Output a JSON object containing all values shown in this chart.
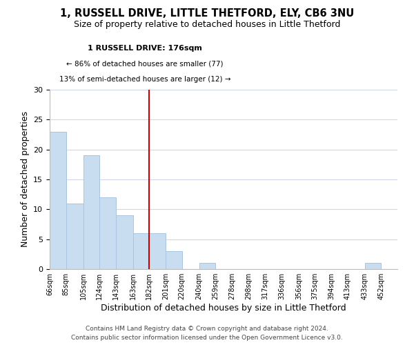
{
  "title": "1, RUSSELL DRIVE, LITTLE THETFORD, ELY, CB6 3NU",
  "subtitle": "Size of property relative to detached houses in Little Thetford",
  "xlabel": "Distribution of detached houses by size in Little Thetford",
  "ylabel": "Number of detached properties",
  "bar_values": [
    23,
    11,
    19,
    12,
    9,
    6,
    6,
    3,
    0,
    1,
    0,
    0,
    0,
    0,
    0,
    0,
    0,
    0,
    0,
    1,
    0
  ],
  "bin_edges": [
    66,
    85,
    105,
    124,
    143,
    163,
    182,
    201,
    220,
    240,
    259,
    278,
    298,
    317,
    336,
    356,
    375,
    394,
    413,
    433,
    452,
    471
  ],
  "tick_labels": [
    "66sqm",
    "85sqm",
    "105sqm",
    "124sqm",
    "143sqm",
    "163sqm",
    "182sqm",
    "201sqm",
    "220sqm",
    "240sqm",
    "259sqm",
    "278sqm",
    "298sqm",
    "317sqm",
    "336sqm",
    "356sqm",
    "375sqm",
    "394sqm",
    "413sqm",
    "433sqm",
    "452sqm"
  ],
  "bar_color": "#c8ddf0",
  "bar_edge_color": "#a8c4e0",
  "vline_x": 182,
  "vline_color": "#cc0000",
  "ylim": [
    0,
    30
  ],
  "yticks": [
    0,
    5,
    10,
    15,
    20,
    25,
    30
  ],
  "annotation_title": "1 RUSSELL DRIVE: 176sqm",
  "annotation_line1": "← 86% of detached houses are smaller (77)",
  "annotation_line2": "13% of semi-detached houses are larger (12) →",
  "footer1": "Contains HM Land Registry data © Crown copyright and database right 2024.",
  "footer2": "Contains public sector information licensed under the Open Government Licence v3.0.",
  "background_color": "#ffffff",
  "grid_color": "#d0d8e8"
}
